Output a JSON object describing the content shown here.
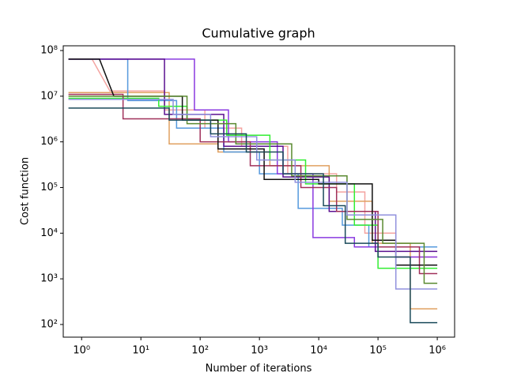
{
  "chart_data": {
    "type": "line",
    "title": "Cumulative graph",
    "x_label": "Number of iterations",
    "y_label": "Cost function",
    "xscale": "log",
    "yscale": "log",
    "xlim": [
      0.49,
      1960000
    ],
    "ylim": [
      52.8,
      127000000
    ],
    "xticks": [
      {
        "value": 1,
        "label": "10⁰"
      },
      {
        "value": 10,
        "label": "10¹"
      },
      {
        "value": 100,
        "label": "10²"
      },
      {
        "value": 1000,
        "label": "10³"
      },
      {
        "value": 10000,
        "label": "10⁴"
      },
      {
        "value": 100000,
        "label": "10⁵"
      },
      {
        "value": 1000000,
        "label": "10⁶"
      }
    ],
    "yticks": [
      {
        "value": 100,
        "label": "10²"
      },
      {
        "value": 1000,
        "label": "10³"
      },
      {
        "value": 10000,
        "label": "10⁴"
      },
      {
        "value": 100000,
        "label": "10⁵"
      },
      {
        "value": 1000000,
        "label": "10⁶"
      },
      {
        "value": 10000000,
        "label": "10⁷"
      },
      {
        "value": 100000000,
        "label": "10⁸"
      }
    ],
    "series": [
      {
        "color": "#f4a3a0",
        "x": [
          0.6,
          1.5,
          3,
          25,
          25,
          120,
          120,
          500,
          500,
          3000,
          3000,
          20000,
          20000,
          60000,
          60000,
          200000,
          200000,
          1000000
        ],
        "values": [
          65000000,
          65000000,
          13000000,
          13000000,
          5000000,
          5000000,
          2000000,
          2000000,
          800000,
          800000,
          200000,
          200000,
          80000,
          80000,
          10000,
          10000,
          3000,
          3000
        ]
      },
      {
        "color": "#e0a060",
        "x": [
          0.6,
          30,
          30,
          200,
          200,
          1500,
          1500,
          15000,
          15000,
          80000,
          80000,
          350000,
          350000,
          1000000
        ],
        "values": [
          12000000,
          12000000,
          900000,
          900000,
          600000,
          600000,
          300000,
          300000,
          50000,
          50000,
          6000,
          6000,
          220,
          220
        ]
      },
      {
        "color": "#5599dd",
        "x": [
          0.6,
          6,
          6,
          40,
          40,
          250,
          250,
          1000,
          1000,
          4500,
          4500,
          25000,
          25000,
          70000,
          70000,
          1000000
        ],
        "values": [
          65000000,
          65000000,
          8000000,
          8000000,
          2000000,
          2000000,
          600000,
          600000,
          200000,
          200000,
          35000,
          35000,
          15000,
          15000,
          5000,
          5000
        ]
      },
      {
        "color": "#8a3ae0",
        "x": [
          0.6,
          80,
          80,
          300,
          300,
          2000,
          2000,
          8000,
          8000,
          40000,
          40000,
          200000,
          200000,
          1000000
        ],
        "values": [
          65000000,
          65000000,
          5000000,
          5000000,
          1000000,
          1000000,
          200000,
          200000,
          8000,
          8000,
          5000,
          5000,
          3000,
          3000
        ]
      },
      {
        "color": "#5a1090",
        "x": [
          0.6,
          25,
          25,
          250,
          250,
          2500,
          2500,
          15000,
          15000,
          90000,
          90000,
          1000000
        ],
        "values": [
          65000000,
          65000000,
          4000000,
          4000000,
          800000,
          800000,
          170000,
          170000,
          30000,
          30000,
          4000,
          4000
        ]
      },
      {
        "color": "#33ee33",
        "x": [
          0.6,
          20,
          20,
          60,
          60,
          280,
          280,
          1500,
          1500,
          6000,
          6000,
          40000,
          40000,
          100000,
          100000,
          1000000
        ],
        "values": [
          9000000,
          9000000,
          6000000,
          6000000,
          3000000,
          3000000,
          1400000,
          1400000,
          400000,
          400000,
          120000,
          120000,
          15000,
          15000,
          1700,
          1700
        ]
      },
      {
        "color": "#a0305a",
        "x": [
          0.6,
          5,
          5,
          100,
          100,
          700,
          700,
          5000,
          5000,
          20000,
          20000,
          100000,
          100000,
          500000,
          500000,
          1000000
        ],
        "values": [
          11000000,
          11000000,
          3200000,
          3200000,
          1000000,
          1000000,
          300000,
          300000,
          100000,
          100000,
          30000,
          30000,
          5000,
          5000,
          1300,
          1300
        ]
      },
      {
        "color": "#111111",
        "x": [
          0.6,
          2,
          3.5,
          50,
          50,
          200,
          200,
          1200,
          1200,
          10000,
          10000,
          80000,
          80000,
          200000,
          200000,
          1000000
        ],
        "values": [
          65000000,
          65000000,
          10000000,
          10000000,
          3000000,
          3000000,
          700000,
          700000,
          150000,
          150000,
          120000,
          120000,
          7000,
          7000,
          2000,
          2000
        ]
      },
      {
        "color": "#5a8a30",
        "x": [
          0.6,
          60,
          60,
          400,
          400,
          3500,
          3500,
          30000,
          30000,
          120000,
          120000,
          600000,
          600000,
          1000000
        ],
        "values": [
          10000000,
          10000000,
          2500000,
          2500000,
          900000,
          900000,
          180000,
          180000,
          20000,
          20000,
          6000,
          6000,
          800,
          800
        ]
      },
      {
        "color": "#9090dd",
        "x": [
          0.6,
          35,
          35,
          150,
          150,
          900,
          900,
          4000,
          4000,
          30000,
          30000,
          200000,
          200000,
          1000000
        ],
        "values": [
          8500000,
          8500000,
          4000000,
          4000000,
          1300000,
          1300000,
          400000,
          400000,
          130000,
          130000,
          25000,
          25000,
          600,
          600
        ]
      },
      {
        "color": "#1a4a5a",
        "x": [
          0.6,
          30,
          30,
          150,
          150,
          600,
          600,
          2500,
          2500,
          12000,
          12000,
          28000,
          28000,
          100000,
          100000,
          350000,
          350000,
          1000000
        ],
        "values": [
          5500000,
          5500000,
          3000000,
          3000000,
          1500000,
          1500000,
          600000,
          600000,
          200000,
          200000,
          40000,
          40000,
          6000,
          6000,
          3000,
          3000,
          110,
          110
        ]
      }
    ]
  }
}
